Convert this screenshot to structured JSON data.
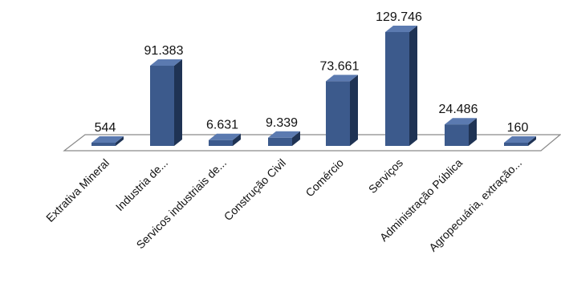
{
  "chart_data": {
    "type": "bar",
    "title": "",
    "xlabel": "",
    "ylabel": "",
    "categories": [
      "Extrativa Mineral",
      "Industria de...",
      "Servicos industriais de...",
      "Construção Civil",
      "Comércio",
      "Serviços",
      "Administração Pública",
      "Agropecuária, extração..."
    ],
    "values": [
      544,
      91383,
      6631,
      9339,
      73661,
      129746,
      24486,
      160
    ],
    "value_labels": [
      "544",
      "91.383",
      "6.631",
      "9.339",
      "73.661",
      "129.746",
      "24.486",
      "160"
    ],
    "ylim": [
      0,
      129746
    ],
    "grid": false,
    "legend": "none",
    "bar_color": "#3c5a8c",
    "bar_top_color": "#5b7ab0",
    "bar_side_color": "#1f3354"
  }
}
